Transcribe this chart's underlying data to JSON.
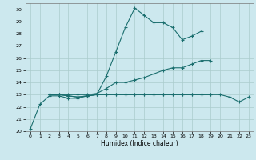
{
  "xlabel": "Humidex (Indice chaleur)",
  "bg_color": "#cce8ee",
  "grid_color": "#aacccc",
  "line_color": "#1a6e6e",
  "xlim": [
    -0.5,
    23.5
  ],
  "ylim": [
    20,
    30.5
  ],
  "line1_x": [
    0,
    1,
    2,
    3,
    4,
    5,
    6,
    7,
    8,
    9,
    10,
    11,
    12,
    13,
    14,
    15,
    16,
    17,
    18
  ],
  "line1_y": [
    20.2,
    22.2,
    22.9,
    22.9,
    22.7,
    22.7,
    22.9,
    23.0,
    24.5,
    26.5,
    28.5,
    30.1,
    29.5,
    28.9,
    28.9,
    28.5,
    27.5,
    27.8,
    28.2
  ],
  "line2_x": [
    2,
    3,
    4,
    5,
    6,
    7,
    8,
    9,
    10,
    11,
    12,
    13,
    14,
    15,
    16,
    17,
    18,
    19
  ],
  "line2_y": [
    23.0,
    23.0,
    23.0,
    23.0,
    23.0,
    23.1,
    23.5,
    24.0,
    24.0,
    24.2,
    24.4,
    24.7,
    25.0,
    25.2,
    25.2,
    25.5,
    25.8,
    25.8
  ],
  "line3_x": [
    2,
    3,
    4,
    5,
    6,
    7,
    8,
    9,
    10,
    11,
    12,
    13,
    14,
    15,
    16,
    17,
    18,
    19
  ],
  "line3_y": [
    23.0,
    23.0,
    22.9,
    22.8,
    22.9,
    23.0,
    23.0,
    23.0,
    23.0,
    23.0,
    23.0,
    23.0,
    23.0,
    23.0,
    23.0,
    23.0,
    23.0,
    23.0
  ],
  "line4_x": [
    2,
    3,
    4,
    5,
    6,
    7,
    8,
    9,
    10,
    11,
    12,
    13,
    14,
    15,
    16,
    17,
    18,
    19,
    20,
    21,
    22,
    23
  ],
  "line4_y": [
    23.0,
    23.0,
    22.9,
    22.8,
    22.9,
    23.0,
    23.0,
    23.0,
    23.0,
    23.0,
    23.0,
    23.0,
    23.0,
    23.0,
    23.0,
    23.0,
    23.0,
    23.0,
    23.0,
    22.8,
    22.4,
    22.8
  ]
}
